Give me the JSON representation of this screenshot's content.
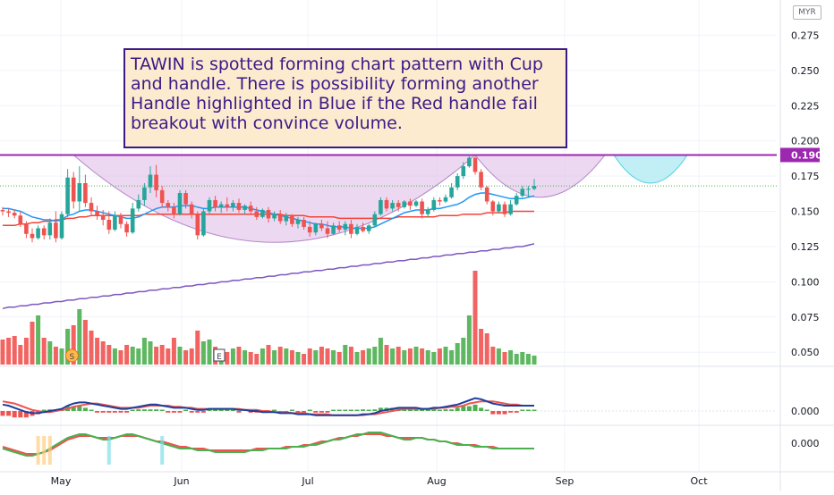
{
  "annotation": {
    "text": "TAWIN is spotted forming chart pattern with Cup and handle. There is possibility forming another Handle highlighted in Blue if the Red handle fail breakout with convince volume."
  },
  "currency": "MYR",
  "colors": {
    "up": "#26a69a",
    "upVolume": "#4caf50",
    "down": "#ef5350",
    "resistance": "#9c27b0",
    "cup": "#e1bee7",
    "blueHandle": "#b2ebf2",
    "ma_fast": "#2196f3",
    "ma_mid": "#f44336",
    "ma_slow": "#7e57c2"
  },
  "chart_data": {
    "type": "candlestick",
    "price_axis": {
      "ticks": [
        0.05,
        0.075,
        0.1,
        0.125,
        0.15,
        0.175,
        0.2,
        0.225,
        0.25,
        0.275
      ],
      "tick_labels": [
        "0.050",
        "0.075",
        "0.100",
        "0.125",
        "0.150",
        "0.175",
        "0.200",
        "0.225",
        "0.250",
        "0.275"
      ],
      "range": [
        0.04,
        0.3
      ]
    },
    "time_axis": {
      "labels": [
        "May",
        "Jun",
        "Jul",
        "Aug",
        "Sep",
        "Oct"
      ]
    },
    "resistance": {
      "value": 0.19,
      "label": "0.190"
    },
    "candles": [
      [
        0.151,
        0.153,
        0.147,
        0.15
      ],
      [
        0.15,
        0.152,
        0.146,
        0.149
      ],
      [
        0.149,
        0.151,
        0.145,
        0.147
      ],
      [
        0.147,
        0.15,
        0.139,
        0.141
      ],
      [
        0.141,
        0.143,
        0.131,
        0.134
      ],
      [
        0.134,
        0.138,
        0.128,
        0.131
      ],
      [
        0.131,
        0.14,
        0.13,
        0.138
      ],
      [
        0.138,
        0.14,
        0.13,
        0.133
      ],
      [
        0.133,
        0.145,
        0.13,
        0.142
      ],
      [
        0.142,
        0.15,
        0.128,
        0.131
      ],
      [
        0.131,
        0.15,
        0.13,
        0.148
      ],
      [
        0.148,
        0.18,
        0.146,
        0.174
      ],
      [
        0.174,
        0.178,
        0.152,
        0.157
      ],
      [
        0.157,
        0.182,
        0.15,
        0.17
      ],
      [
        0.17,
        0.176,
        0.153,
        0.156
      ],
      [
        0.156,
        0.16,
        0.147,
        0.15
      ],
      [
        0.15,
        0.154,
        0.144,
        0.147
      ],
      [
        0.147,
        0.151,
        0.14,
        0.144
      ],
      [
        0.144,
        0.15,
        0.134,
        0.137
      ],
      [
        0.137,
        0.15,
        0.136,
        0.147
      ],
      [
        0.147,
        0.149,
        0.138,
        0.141
      ],
      [
        0.141,
        0.143,
        0.132,
        0.135
      ],
      [
        0.135,
        0.156,
        0.134,
        0.152
      ],
      [
        0.152,
        0.162,
        0.15,
        0.158
      ],
      [
        0.158,
        0.17,
        0.154,
        0.167
      ],
      [
        0.167,
        0.182,
        0.163,
        0.176
      ],
      [
        0.176,
        0.183,
        0.16,
        0.165
      ],
      [
        0.165,
        0.168,
        0.153,
        0.156
      ],
      [
        0.156,
        0.158,
        0.15,
        0.153
      ],
      [
        0.153,
        0.156,
        0.145,
        0.148
      ],
      [
        0.148,
        0.165,
        0.147,
        0.163
      ],
      [
        0.163,
        0.165,
        0.152,
        0.155
      ],
      [
        0.155,
        0.157,
        0.145,
        0.148
      ],
      [
        0.148,
        0.15,
        0.13,
        0.133
      ],
      [
        0.133,
        0.152,
        0.132,
        0.15
      ],
      [
        0.15,
        0.16,
        0.148,
        0.158
      ],
      [
        0.158,
        0.161,
        0.15,
        0.153
      ],
      [
        0.153,
        0.157,
        0.149,
        0.155
      ],
      [
        0.155,
        0.16,
        0.15,
        0.153
      ],
      [
        0.153,
        0.158,
        0.15,
        0.156
      ],
      [
        0.156,
        0.159,
        0.149,
        0.151
      ],
      [
        0.151,
        0.155,
        0.148,
        0.154
      ],
      [
        0.154,
        0.157,
        0.148,
        0.15
      ],
      [
        0.15,
        0.153,
        0.144,
        0.146
      ],
      [
        0.146,
        0.152,
        0.145,
        0.151
      ],
      [
        0.151,
        0.153,
        0.142,
        0.145
      ],
      [
        0.145,
        0.15,
        0.143,
        0.148
      ],
      [
        0.148,
        0.151,
        0.141,
        0.143
      ],
      [
        0.143,
        0.149,
        0.14,
        0.147
      ],
      [
        0.147,
        0.148,
        0.139,
        0.141
      ],
      [
        0.141,
        0.146,
        0.138,
        0.144
      ],
      [
        0.144,
        0.146,
        0.137,
        0.139
      ],
      [
        0.139,
        0.143,
        0.132,
        0.135
      ],
      [
        0.135,
        0.142,
        0.133,
        0.141
      ],
      [
        0.141,
        0.144,
        0.136,
        0.138
      ],
      [
        0.138,
        0.143,
        0.131,
        0.134
      ],
      [
        0.134,
        0.142,
        0.133,
        0.14
      ],
      [
        0.14,
        0.143,
        0.135,
        0.137
      ],
      [
        0.137,
        0.143,
        0.133,
        0.141
      ],
      [
        0.141,
        0.144,
        0.131,
        0.134
      ],
      [
        0.134,
        0.141,
        0.133,
        0.139
      ],
      [
        0.139,
        0.142,
        0.135,
        0.136
      ],
      [
        0.136,
        0.141,
        0.134,
        0.14
      ],
      [
        0.14,
        0.15,
        0.139,
        0.148
      ],
      [
        0.148,
        0.16,
        0.147,
        0.158
      ],
      [
        0.158,
        0.16,
        0.15,
        0.152
      ],
      [
        0.152,
        0.158,
        0.15,
        0.156
      ],
      [
        0.156,
        0.158,
        0.15,
        0.153
      ],
      [
        0.153,
        0.158,
        0.152,
        0.157
      ],
      [
        0.157,
        0.159,
        0.151,
        0.154
      ],
      [
        0.154,
        0.158,
        0.153,
        0.157
      ],
      [
        0.157,
        0.159,
        0.145,
        0.148
      ],
      [
        0.148,
        0.153,
        0.146,
        0.151
      ],
      [
        0.151,
        0.16,
        0.15,
        0.158
      ],
      [
        0.158,
        0.16,
        0.154,
        0.157
      ],
      [
        0.157,
        0.162,
        0.156,
        0.16
      ],
      [
        0.16,
        0.17,
        0.159,
        0.167
      ],
      [
        0.167,
        0.177,
        0.165,
        0.175
      ],
      [
        0.175,
        0.185,
        0.173,
        0.182
      ],
      [
        0.182,
        0.19,
        0.181,
        0.188
      ],
      [
        0.188,
        0.189,
        0.176,
        0.178
      ],
      [
        0.178,
        0.18,
        0.165,
        0.167
      ],
      [
        0.167,
        0.168,
        0.155,
        0.157
      ],
      [
        0.157,
        0.158,
        0.147,
        0.15
      ],
      [
        0.15,
        0.157,
        0.149,
        0.155
      ],
      [
        0.155,
        0.157,
        0.146,
        0.148
      ],
      [
        0.148,
        0.158,
        0.147,
        0.155
      ],
      [
        0.155,
        0.163,
        0.154,
        0.161
      ],
      [
        0.161,
        0.168,
        0.16,
        0.166
      ],
      [
        0.166,
        0.168,
        0.16,
        0.166
      ],
      [
        0.166,
        0.173,
        0.165,
        0.168
      ]
    ],
    "volume": [
      28,
      30,
      32,
      22,
      30,
      48,
      55,
      30,
      26,
      20,
      18,
      40,
      44,
      62,
      50,
      38,
      30,
      26,
      22,
      18,
      16,
      22,
      20,
      18,
      30,
      26,
      20,
      22,
      18,
      30,
      20,
      16,
      18,
      38,
      26,
      28,
      20,
      16,
      14,
      18,
      20,
      16,
      14,
      12,
      18,
      22,
      16,
      20,
      18,
      16,
      14,
      12,
      18,
      16,
      20,
      18,
      16,
      14,
      22,
      20,
      14,
      16,
      18,
      20,
      30,
      22,
      18,
      20,
      16,
      18,
      20,
      18,
      16,
      14,
      18,
      20,
      16,
      24,
      30,
      55,
      105,
      40,
      35,
      20,
      18,
      14,
      16,
      12,
      14,
      12,
      10
    ],
    "ma_fast_values": [
      0.152,
      0.152,
      0.151,
      0.15,
      0.148,
      0.146,
      0.145,
      0.144,
      0.144,
      0.143,
      0.144,
      0.147,
      0.148,
      0.15,
      0.151,
      0.151,
      0.15,
      0.149,
      0.148,
      0.147,
      0.146,
      0.145,
      0.145,
      0.146,
      0.148,
      0.15,
      0.152,
      0.153,
      0.153,
      0.153,
      0.154,
      0.154,
      0.154,
      0.153,
      0.152,
      0.152,
      0.153,
      0.153,
      0.153,
      0.153,
      0.153,
      0.153,
      0.152,
      0.151,
      0.15,
      0.149,
      0.148,
      0.147,
      0.146,
      0.145,
      0.144,
      0.143,
      0.142,
      0.141,
      0.141,
      0.14,
      0.139,
      0.139,
      0.139,
      0.138,
      0.138,
      0.138,
      0.138,
      0.139,
      0.141,
      0.143,
      0.145,
      0.147,
      0.149,
      0.15,
      0.151,
      0.151,
      0.151,
      0.152,
      0.152,
      0.153,
      0.154,
      0.155,
      0.157,
      0.16,
      0.162,
      0.163,
      0.163,
      0.162,
      0.161,
      0.16,
      0.159,
      0.159,
      0.159,
      0.16,
      0.161
    ],
    "ma_mid_values": [
      0.14,
      0.14,
      0.14,
      0.141,
      0.141,
      0.142,
      0.142,
      0.143,
      0.143,
      0.144,
      0.144,
      0.145,
      0.145,
      0.146,
      0.146,
      0.147,
      0.147,
      0.147,
      0.147,
      0.147,
      0.147,
      0.147,
      0.147,
      0.147,
      0.148,
      0.148,
      0.148,
      0.148,
      0.148,
      0.148,
      0.148,
      0.148,
      0.148,
      0.148,
      0.148,
      0.148,
      0.148,
      0.148,
      0.148,
      0.148,
      0.148,
      0.148,
      0.148,
      0.148,
      0.148,
      0.148,
      0.148,
      0.148,
      0.147,
      0.147,
      0.147,
      0.147,
      0.146,
      0.146,
      0.146,
      0.146,
      0.146,
      0.145,
      0.145,
      0.145,
      0.145,
      0.145,
      0.145,
      0.145,
      0.145,
      0.145,
      0.145,
      0.146,
      0.146,
      0.146,
      0.146,
      0.146,
      0.146,
      0.146,
      0.147,
      0.147,
      0.147,
      0.147,
      0.148,
      0.148,
      0.148,
      0.148,
      0.149,
      0.149,
      0.149,
      0.149,
      0.15,
      0.15,
      0.15,
      0.15,
      0.15
    ],
    "ma_slow_values": [
      0.081,
      0.082,
      0.082,
      0.083,
      0.083,
      0.084,
      0.084,
      0.085,
      0.085,
      0.086,
      0.086,
      0.087,
      0.087,
      0.088,
      0.088,
      0.089,
      0.089,
      0.09,
      0.09,
      0.091,
      0.091,
      0.092,
      0.092,
      0.093,
      0.093,
      0.094,
      0.094,
      0.095,
      0.095,
      0.096,
      0.096,
      0.097,
      0.097,
      0.098,
      0.098,
      0.099,
      0.099,
      0.1,
      0.1,
      0.101,
      0.101,
      0.102,
      0.102,
      0.103,
      0.103,
      0.104,
      0.104,
      0.105,
      0.105,
      0.106,
      0.106,
      0.107,
      0.107,
      0.108,
      0.108,
      0.109,
      0.109,
      0.11,
      0.11,
      0.111,
      0.111,
      0.112,
      0.112,
      0.113,
      0.113,
      0.114,
      0.114,
      0.115,
      0.115,
      0.116,
      0.116,
      0.117,
      0.117,
      0.118,
      0.118,
      0.119,
      0.119,
      0.12,
      0.12,
      0.121,
      0.121,
      0.122,
      0.122,
      0.123,
      0.123,
      0.124,
      0.124,
      0.125,
      0.125,
      0.126,
      0.127
    ],
    "macd_panel": {
      "zero_label": "0.000",
      "macd": [
        0.6,
        0.5,
        0.3,
        0.1,
        -0.1,
        -0.2,
        -0.2,
        -0.1,
        0.0,
        0.1,
        0.2,
        0.5,
        0.7,
        0.8,
        0.8,
        0.7,
        0.6,
        0.5,
        0.4,
        0.3,
        0.2,
        0.2,
        0.3,
        0.4,
        0.5,
        0.6,
        0.6,
        0.5,
        0.4,
        0.3,
        0.3,
        0.3,
        0.2,
        0.1,
        0.1,
        0.2,
        0.2,
        0.2,
        0.2,
        0.2,
        0.1,
        0.1,
        0.0,
        0.0,
        -0.1,
        -0.1,
        -0.1,
        -0.2,
        -0.2,
        -0.2,
        -0.3,
        -0.3,
        -0.3,
        -0.4,
        -0.4,
        -0.4,
        -0.4,
        -0.4,
        -0.4,
        -0.4,
        -0.4,
        -0.3,
        -0.3,
        -0.2,
        0.0,
        0.1,
        0.2,
        0.3,
        0.3,
        0.3,
        0.3,
        0.2,
        0.2,
        0.3,
        0.3,
        0.4,
        0.5,
        0.6,
        0.8,
        1.0,
        1.2,
        1.1,
        0.9,
        0.7,
        0.6,
        0.5,
        0.5,
        0.5,
        0.5,
        0.5,
        0.5
      ],
      "signal": [
        0.9,
        0.8,
        0.7,
        0.5,
        0.3,
        0.1,
        0.0,
        -0.1,
        -0.1,
        0.0,
        0.1,
        0.2,
        0.4,
        0.5,
        0.6,
        0.7,
        0.7,
        0.6,
        0.5,
        0.4,
        0.3,
        0.3,
        0.3,
        0.3,
        0.4,
        0.5,
        0.5,
        0.5,
        0.5,
        0.4,
        0.4,
        0.3,
        0.3,
        0.2,
        0.2,
        0.2,
        0.2,
        0.2,
        0.2,
        0.2,
        0.2,
        0.1,
        0.1,
        0.1,
        0.0,
        0.0,
        -0.1,
        -0.1,
        -0.1,
        -0.2,
        -0.2,
        -0.2,
        -0.3,
        -0.3,
        -0.3,
        -0.3,
        -0.4,
        -0.4,
        -0.4,
        -0.4,
        -0.4,
        -0.4,
        -0.3,
        -0.3,
        -0.2,
        -0.1,
        0.0,
        0.1,
        0.2,
        0.2,
        0.2,
        0.2,
        0.2,
        0.2,
        0.3,
        0.3,
        0.4,
        0.4,
        0.5,
        0.7,
        0.8,
        0.9,
        0.9,
        0.9,
        0.8,
        0.7,
        0.6,
        0.6,
        0.5,
        0.5,
        0.5
      ]
    },
    "oscillator_panel": {
      "zero_label": "0.000",
      "line_a": [
        -0.3,
        -0.4,
        -0.5,
        -0.6,
        -0.7,
        -0.7,
        -0.6,
        -0.5,
        -0.3,
        -0.1,
        0.1,
        0.3,
        0.4,
        0.5,
        0.5,
        0.4,
        0.3,
        0.2,
        0.2,
        0.3,
        0.4,
        0.5,
        0.5,
        0.4,
        0.3,
        0.2,
        0.1,
        0.0,
        -0.1,
        -0.2,
        -0.3,
        -0.3,
        -0.3,
        -0.4,
        -0.4,
        -0.4,
        -0.5,
        -0.5,
        -0.5,
        -0.5,
        -0.5,
        -0.5,
        -0.4,
        -0.4,
        -0.4,
        -0.3,
        -0.3,
        -0.3,
        -0.3,
        -0.2,
        -0.2,
        -0.2,
        -0.1,
        -0.1,
        0.0,
        0.1,
        0.2,
        0.2,
        0.3,
        0.4,
        0.5,
        0.5,
        0.6,
        0.6,
        0.6,
        0.5,
        0.4,
        0.3,
        0.2,
        0.2,
        0.3,
        0.3,
        0.2,
        0.2,
        0.1,
        0.1,
        0.0,
        -0.1,
        -0.1,
        -0.1,
        -0.2,
        -0.2,
        -0.2,
        -0.3,
        -0.3,
        -0.3,
        -0.3,
        -0.3,
        -0.3,
        -0.3,
        -0.3
      ],
      "line_b": [
        -0.2,
        -0.3,
        -0.4,
        -0.5,
        -0.6,
        -0.6,
        -0.6,
        -0.5,
        -0.4,
        -0.2,
        0.0,
        0.2,
        0.3,
        0.4,
        0.4,
        0.4,
        0.3,
        0.3,
        0.3,
        0.3,
        0.4,
        0.4,
        0.4,
        0.4,
        0.3,
        0.2,
        0.1,
        0.1,
        0.0,
        -0.1,
        -0.2,
        -0.2,
        -0.3,
        -0.3,
        -0.3,
        -0.4,
        -0.4,
        -0.4,
        -0.4,
        -0.4,
        -0.4,
        -0.4,
        -0.4,
        -0.3,
        -0.3,
        -0.3,
        -0.3,
        -0.3,
        -0.2,
        -0.2,
        -0.2,
        -0.1,
        -0.1,
        0.0,
        0.1,
        0.1,
        0.2,
        0.3,
        0.3,
        0.4,
        0.4,
        0.5,
        0.5,
        0.5,
        0.5,
        0.4,
        0.4,
        0.3,
        0.3,
        0.3,
        0.3,
        0.3,
        0.2,
        0.2,
        0.1,
        0.1,
        0.0,
        0.0,
        -0.1,
        -0.1,
        -0.1,
        -0.2,
        -0.2,
        -0.2,
        -0.3,
        -0.3,
        -0.3,
        -0.3,
        -0.3,
        -0.3,
        -0.3
      ]
    },
    "event_markers": [
      {
        "label": "S",
        "index": 9
      },
      {
        "label": "E",
        "index": 20
      }
    ]
  }
}
